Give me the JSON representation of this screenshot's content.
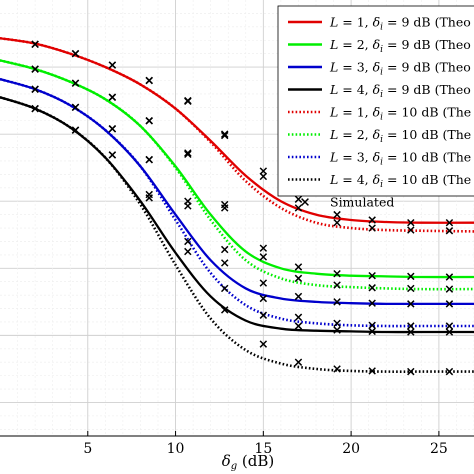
{
  "chart_data": {
    "type": "line",
    "xlabel": "δg (dB)",
    "xlim": [
      0,
      27
    ],
    "ylim": [
      0.35,
      1.0
    ],
    "grid": true,
    "legend_position": "top-right",
    "x_ticks": [
      5,
      10,
      15,
      20,
      25
    ],
    "series": [
      {
        "name": "L = 1, δi = 9 dB (Theo",
        "color": "#e00000",
        "style": "solid",
        "x": [
          0,
          2,
          4,
          6,
          8,
          10,
          12,
          14,
          16,
          18,
          20,
          22,
          24,
          27
        ],
        "y": [
          0.943,
          0.935,
          0.92,
          0.9,
          0.874,
          0.838,
          0.79,
          0.738,
          0.7,
          0.68,
          0.672,
          0.669,
          0.668,
          0.668
        ]
      },
      {
        "name": "L = 2, δi = 9 dB (Theo",
        "color": "#00ee00",
        "style": "solid",
        "x": [
          0,
          2,
          4,
          6,
          8,
          10,
          12,
          14,
          16,
          18,
          20,
          22,
          24,
          27
        ],
        "y": [
          0.91,
          0.897,
          0.878,
          0.852,
          0.812,
          0.752,
          0.68,
          0.625,
          0.6,
          0.592,
          0.589,
          0.588,
          0.587,
          0.587
        ]
      },
      {
        "name": "L = 3, δi = 9 dB (Theo",
        "color": "#0000cc",
        "style": "solid",
        "x": [
          0,
          2,
          4,
          6,
          8,
          10,
          12,
          14,
          16,
          18,
          20,
          22,
          24,
          27
        ],
        "y": [
          0.882,
          0.867,
          0.843,
          0.806,
          0.752,
          0.68,
          0.612,
          0.57,
          0.555,
          0.55,
          0.548,
          0.547,
          0.547,
          0.547
        ]
      },
      {
        "name": "L = 4, δi = 9 dB (Theo",
        "color": "#000000",
        "style": "solid",
        "x": [
          0,
          2,
          4,
          6,
          8,
          10,
          12,
          14,
          16,
          18,
          20,
          22,
          24,
          27
        ],
        "y": [
          0.855,
          0.838,
          0.81,
          0.765,
          0.7,
          0.623,
          0.558,
          0.522,
          0.51,
          0.507,
          0.506,
          0.505,
          0.505,
          0.505
        ]
      },
      {
        "name": "L = 1, δi = 10 dB (The",
        "color": "#e00000",
        "style": "dotted",
        "x": [
          0,
          2,
          4,
          6,
          8,
          10,
          12,
          14,
          16,
          18,
          20,
          22,
          24,
          27
        ],
        "y": [
          0.943,
          0.935,
          0.92,
          0.9,
          0.874,
          0.838,
          0.788,
          0.73,
          0.69,
          0.668,
          0.66,
          0.657,
          0.656,
          0.655
        ]
      },
      {
        "name": "L = 2, δi = 10 dB (The",
        "color": "#00ee00",
        "style": "dotted",
        "x": [
          0,
          2,
          4,
          6,
          8,
          10,
          12,
          14,
          16,
          18,
          20,
          22,
          24,
          27
        ],
        "y": [
          0.91,
          0.897,
          0.878,
          0.852,
          0.812,
          0.75,
          0.672,
          0.612,
          0.585,
          0.575,
          0.572,
          0.57,
          0.569,
          0.569
        ]
      },
      {
        "name": "L = 3, δi = 10 dB (The",
        "color": "#0000cc",
        "style": "dotted",
        "x": [
          0,
          2,
          4,
          6,
          8,
          10,
          12,
          14,
          16,
          18,
          20,
          22,
          24,
          27
        ],
        "y": [
          0.882,
          0.867,
          0.843,
          0.806,
          0.752,
          0.672,
          0.593,
          0.545,
          0.525,
          0.518,
          0.515,
          0.514,
          0.514,
          0.514
        ]
      },
      {
        "name": "L = 4, δi = 10 dB (The",
        "color": "#000000",
        "style": "dotted",
        "x": [
          0,
          2,
          4,
          6,
          8,
          10,
          12,
          14,
          16,
          18,
          20,
          22,
          24,
          27
        ],
        "y": [
          0.855,
          0.838,
          0.81,
          0.765,
          0.695,
          0.605,
          0.525,
          0.478,
          0.458,
          0.45,
          0.447,
          0.446,
          0.446,
          0.446
        ]
      }
    ],
    "simulated": {
      "name": "Simulated",
      "x": [
        2,
        4.3,
        6.4,
        8.5,
        10.7,
        12.8,
        15,
        17,
        19.2,
        21.2,
        23.4,
        25.6
      ],
      "points": [
        [
          0.934,
          0.92,
          0.903,
          0.88,
          0.85,
          0.8,
          0.745,
          0.703,
          0.68,
          0.672,
          0.668,
          0.668
        ],
        [
          0.897,
          0.876,
          0.855,
          0.82,
          0.772,
          0.695,
          0.63,
          0.602,
          0.592,
          0.589,
          0.588,
          0.587
        ],
        [
          0.867,
          0.84,
          0.808,
          0.762,
          0.7,
          0.628,
          0.578,
          0.558,
          0.55,
          0.548,
          0.547,
          0.547
        ],
        [
          0.838,
          0.806,
          0.769,
          0.71,
          0.64,
          0.57,
          0.53,
          0.514,
          0.508,
          0.506,
          0.505,
          0.505
        ],
        [
          0.934,
          0.92,
          0.903,
          0.88,
          0.849,
          0.798,
          0.737,
          0.69,
          0.668,
          0.66,
          0.657,
          0.656
        ],
        [
          0.897,
          0.876,
          0.855,
          0.82,
          0.77,
          0.69,
          0.617,
          0.585,
          0.575,
          0.571,
          0.57,
          0.569
        ],
        [
          0.867,
          0.84,
          0.808,
          0.762,
          0.693,
          0.608,
          0.555,
          0.527,
          0.518,
          0.515,
          0.514,
          0.514
        ],
        [
          0.838,
          0.806,
          0.769,
          0.705,
          0.625,
          0.538,
          0.487,
          0.46,
          0.45,
          0.447,
          0.446,
          0.446
        ]
      ]
    }
  }
}
